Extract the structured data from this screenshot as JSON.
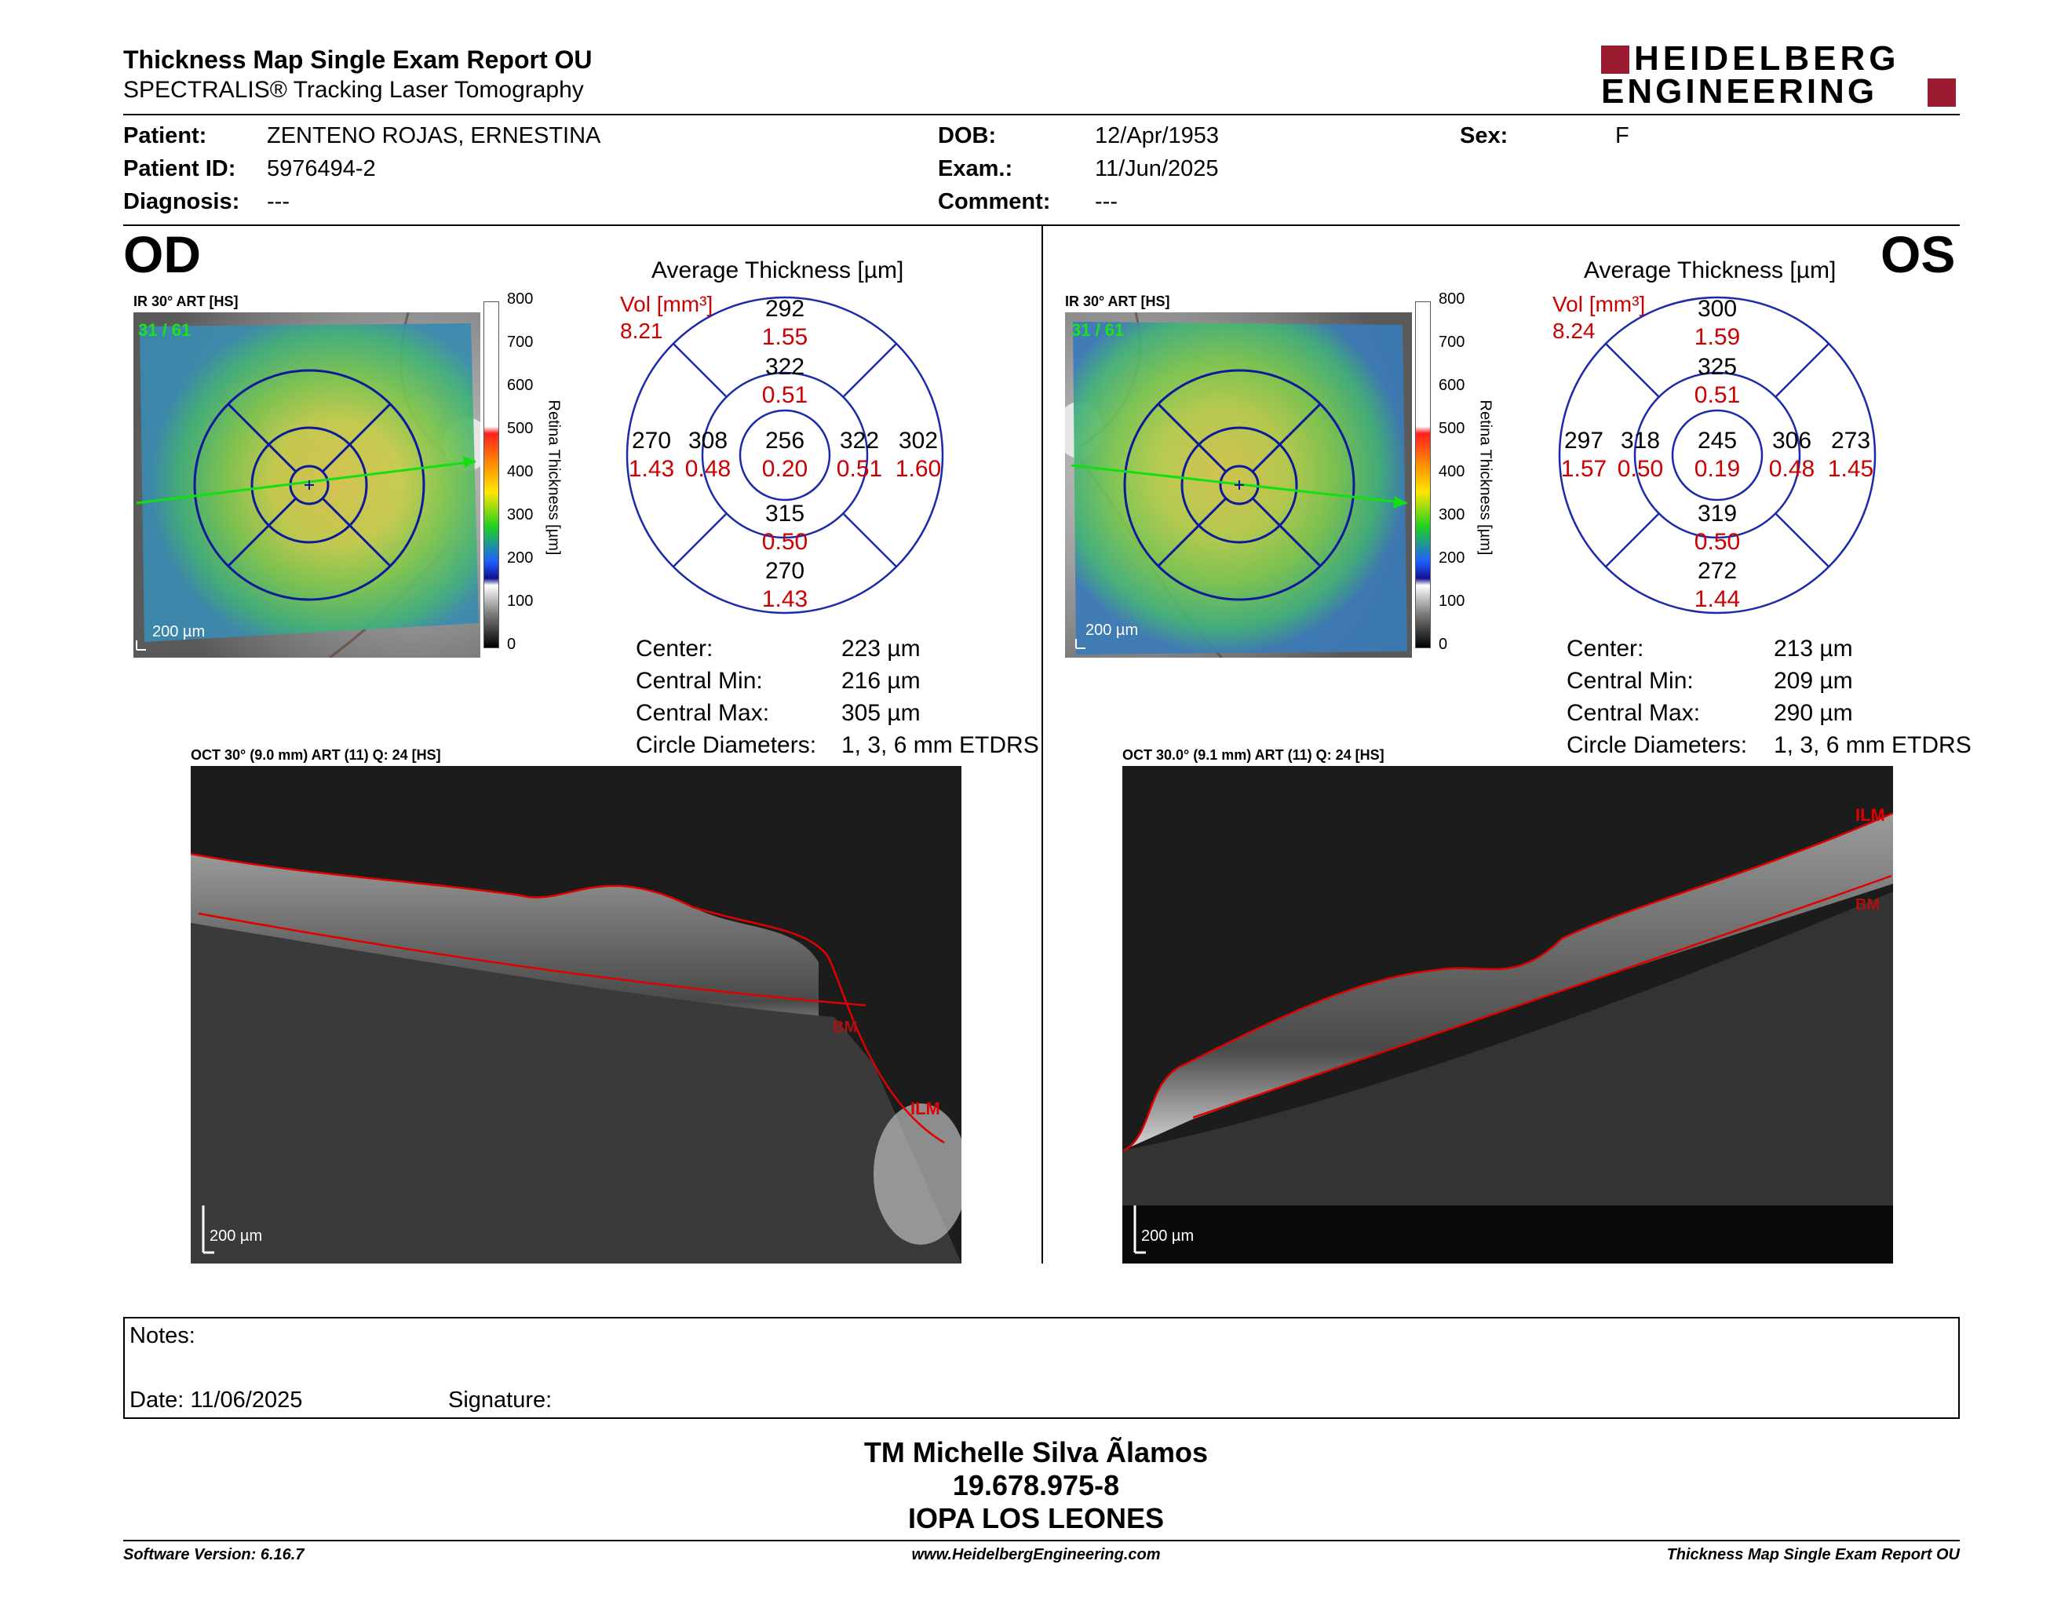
{
  "header": {
    "title": "Thickness Map Single Exam Report OU",
    "subtitle": "SPECTRALIS® Tracking Laser Tomography",
    "logo_line1": "HEIDELBERG",
    "logo_line2": "ENGINEERING",
    "logo_color": "#9b1b30"
  },
  "patient": {
    "patient_label": "Patient:",
    "patient_value": "ZENTENO ROJAS, ERNESTINA",
    "id_label": "Patient ID:",
    "id_value": "5976494-2",
    "diagnosis_label": "Diagnosis:",
    "diagnosis_value": "---",
    "dob_label": "DOB:",
    "dob_value": "12/Apr/1953",
    "exam_label": "Exam.:",
    "exam_value": "11/Jun/2025",
    "comment_label": "Comment:",
    "comment_value": "---",
    "sex_label": "Sex:",
    "sex_value": "F"
  },
  "od": {
    "eye": "OD",
    "ir_caption": "IR 30° ART [HS]",
    "ir_counter": "31 / 61",
    "scale_label": "200 µm",
    "colorbar_ticks": [
      "800",
      "700",
      "600",
      "500",
      "400",
      "300",
      "200",
      "100",
      "0"
    ],
    "colorbar_label": "Retina Thickness [µm]",
    "avg_title": "Average Thickness [µm]",
    "vol_label": "Vol [mm³]",
    "vol_value": "8.21",
    "sectors": {
      "center": {
        "t": "256",
        "v": "0.20"
      },
      "inner_top": {
        "t": "322",
        "v": "0.51"
      },
      "inner_bottom": {
        "t": "315",
        "v": "0.50"
      },
      "inner_left": {
        "t": "308",
        "v": "0.48"
      },
      "inner_right": {
        "t": "322",
        "v": "0.51"
      },
      "outer_top": {
        "t": "292",
        "v": "1.55"
      },
      "outer_bottom": {
        "t": "270",
        "v": "1.43"
      },
      "outer_left": {
        "t": "270",
        "v": "1.43"
      },
      "outer_right": {
        "t": "302",
        "v": "1.60"
      }
    },
    "stats": {
      "center_label": "Center:",
      "center_value": "223 µm",
      "min_label": "Central Min:",
      "min_value": "216 µm",
      "max_label": "Central Max:",
      "max_value": "305 µm",
      "diam_label": "Circle Diameters:",
      "diam_value": "1, 3, 6 mm ETDRS"
    },
    "oct_caption": "OCT 30° (9.0 mm) ART (11) Q: 24 [HS]",
    "oct_scale": "200 µm",
    "ilm_label": "ILM",
    "bm_label": "BM"
  },
  "os": {
    "eye": "OS",
    "ir_caption": "IR 30° ART [HS]",
    "ir_counter": "31 / 61",
    "scale_label": "200 µm",
    "colorbar_ticks": [
      "800",
      "700",
      "600",
      "500",
      "400",
      "300",
      "200",
      "100",
      "0"
    ],
    "colorbar_label": "Retina Thickness [µm]",
    "avg_title": "Average Thickness [µm]",
    "vol_label": "Vol [mm³]",
    "vol_value": "8.24",
    "sectors": {
      "center": {
        "t": "245",
        "v": "0.19"
      },
      "inner_top": {
        "t": "325",
        "v": "0.51"
      },
      "inner_bottom": {
        "t": "319",
        "v": "0.50"
      },
      "inner_left": {
        "t": "318",
        "v": "0.50"
      },
      "inner_right": {
        "t": "306",
        "v": "0.48"
      },
      "outer_top": {
        "t": "300",
        "v": "1.59"
      },
      "outer_bottom": {
        "t": "272",
        "v": "1.44"
      },
      "outer_left": {
        "t": "297",
        "v": "1.57"
      },
      "outer_right": {
        "t": "273",
        "v": "1.45"
      }
    },
    "stats": {
      "center_label": "Center:",
      "center_value": "213 µm",
      "min_label": "Central Min:",
      "min_value": "209 µm",
      "max_label": "Central Max:",
      "max_value": "290 µm",
      "diam_label": "Circle Diameters:",
      "diam_value": "1, 3, 6 mm ETDRS"
    },
    "oct_caption": "OCT 30.0° (9.1 mm) ART (11) Q: 24 [HS]",
    "oct_scale": "200 µm",
    "ilm_label": "ILM",
    "bm_label": "BM"
  },
  "notes": {
    "notes_label": "Notes:",
    "date_label": "Date: 11/06/2025",
    "signature_label": "Signature:"
  },
  "signature_block": {
    "line1": "TM Michelle Silva Ãlamos",
    "line2": "19.678.975-8",
    "line3": "IOPA LOS LEONES"
  },
  "footer": {
    "software": "Software Version: 6.16.7",
    "website": "www.HeidelbergEngineering.com",
    "report": "Thickness Map Single Exam Report OU"
  }
}
